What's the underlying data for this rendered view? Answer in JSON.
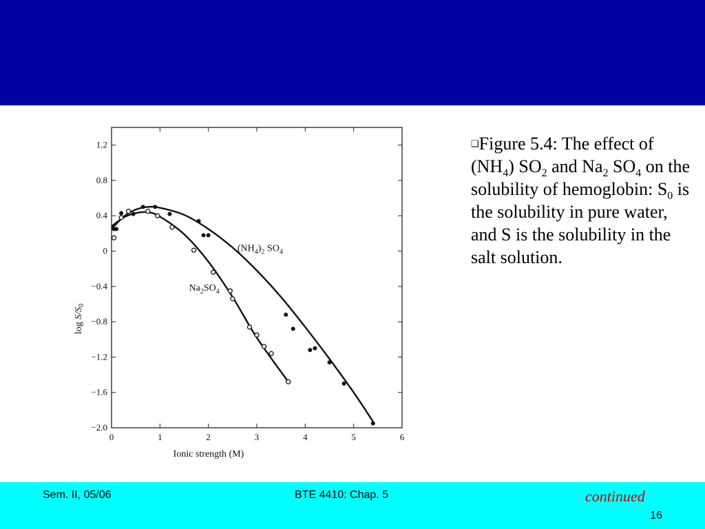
{
  "slide": {
    "caption_bullet": "❑",
    "caption_parts": [
      "Figure 5.4: The effect of (NH",
      "4",
      ") SO",
      "2",
      " and Na",
      "2",
      " SO",
      "4",
      " on the solubility of hemoglobin: S",
      "0",
      " is the solubility in pure water, and S is the solubility in the salt solution."
    ],
    "footer": {
      "left": "Sem. II, 05/06",
      "center": "BTE 4410: Chap. 5",
      "continued": "continued",
      "page": "16"
    },
    "colors": {
      "header": "#0000a0",
      "footer": "#00ffff",
      "continued": "#c00000"
    }
  },
  "chart_data": {
    "type": "scatter",
    "xlabel": "Ionic strength (M)",
    "ylabel": "log S/S0",
    "xlim": [
      0,
      6
    ],
    "ylim": [
      -2.0,
      1.4
    ],
    "x_ticks": [
      0,
      1,
      2,
      3,
      4,
      5,
      6
    ],
    "y_ticks": [
      -2.0,
      -1.6,
      -1.2,
      -0.8,
      -0.4,
      0,
      0.4,
      0.8,
      1.2
    ],
    "y_tick_labels": [
      "−2.0",
      "−1.6",
      "−1.2",
      "−0.8",
      "−0.4",
      "0",
      "0.4",
      "0.8",
      "1.2"
    ],
    "grid": false,
    "series": [
      {
        "name": "(NH4)2SO4",
        "label_base": "(NH",
        "label_sub1": "4",
        "label_mid": ")",
        "label_sub2": "2",
        "label_end": " SO",
        "label_sub3": "4",
        "marker": "filled",
        "points": [
          [
            0.05,
            0.25
          ],
          [
            0.1,
            0.25
          ],
          [
            0.2,
            0.43
          ],
          [
            0.45,
            0.42
          ],
          [
            0.65,
            0.5
          ],
          [
            0.9,
            0.5
          ],
          [
            1.2,
            0.42
          ],
          [
            1.8,
            0.34
          ],
          [
            1.9,
            0.18
          ],
          [
            2.0,
            0.18
          ],
          [
            3.6,
            -0.72
          ],
          [
            3.75,
            -0.88
          ],
          [
            4.1,
            -1.12
          ],
          [
            4.2,
            -1.1
          ],
          [
            4.5,
            -1.26
          ],
          [
            4.8,
            -1.5
          ],
          [
            5.4,
            -1.95
          ]
        ],
        "curve": [
          [
            0.0,
            0.25
          ],
          [
            0.25,
            0.39
          ],
          [
            0.5,
            0.47
          ],
          [
            0.75,
            0.5
          ],
          [
            1.0,
            0.49
          ],
          [
            1.5,
            0.41
          ],
          [
            2.0,
            0.25
          ],
          [
            2.5,
            0.04
          ],
          [
            3.0,
            -0.22
          ],
          [
            3.5,
            -0.52
          ],
          [
            4.0,
            -0.86
          ],
          [
            4.5,
            -1.22
          ],
          [
            5.0,
            -1.6
          ],
          [
            5.4,
            -1.93
          ]
        ]
      },
      {
        "name": "Na2SO4",
        "label_base": "Na",
        "label_sub1": "2",
        "label_mid": "SO",
        "label_sub2": "4",
        "label_end": "",
        "label_sub3": "",
        "marker": "open",
        "points": [
          [
            0.05,
            0.15
          ],
          [
            0.2,
            0.38
          ],
          [
            0.35,
            0.45
          ],
          [
            0.75,
            0.45
          ],
          [
            0.95,
            0.4
          ],
          [
            1.25,
            0.27
          ],
          [
            1.7,
            0.01
          ],
          [
            2.1,
            -0.24
          ],
          [
            2.45,
            -0.45
          ],
          [
            2.5,
            -0.54
          ],
          [
            2.85,
            -0.86
          ],
          [
            3.0,
            -0.95
          ],
          [
            3.15,
            -1.08
          ],
          [
            3.3,
            -1.16
          ],
          [
            3.65,
            -1.48
          ]
        ],
        "curve": [
          [
            0.0,
            0.28
          ],
          [
            0.25,
            0.38
          ],
          [
            0.5,
            0.43
          ],
          [
            0.75,
            0.44
          ],
          [
            1.0,
            0.39
          ],
          [
            1.5,
            0.19
          ],
          [
            2.0,
            -0.12
          ],
          [
            2.5,
            -0.52
          ],
          [
            3.0,
            -0.98
          ],
          [
            3.65,
            -1.48
          ]
        ]
      }
    ],
    "annotations": [
      {
        "series": 0,
        "at": [
          2.6,
          0.0
        ]
      },
      {
        "series": 1,
        "at": [
          1.6,
          -0.45
        ]
      }
    ]
  }
}
